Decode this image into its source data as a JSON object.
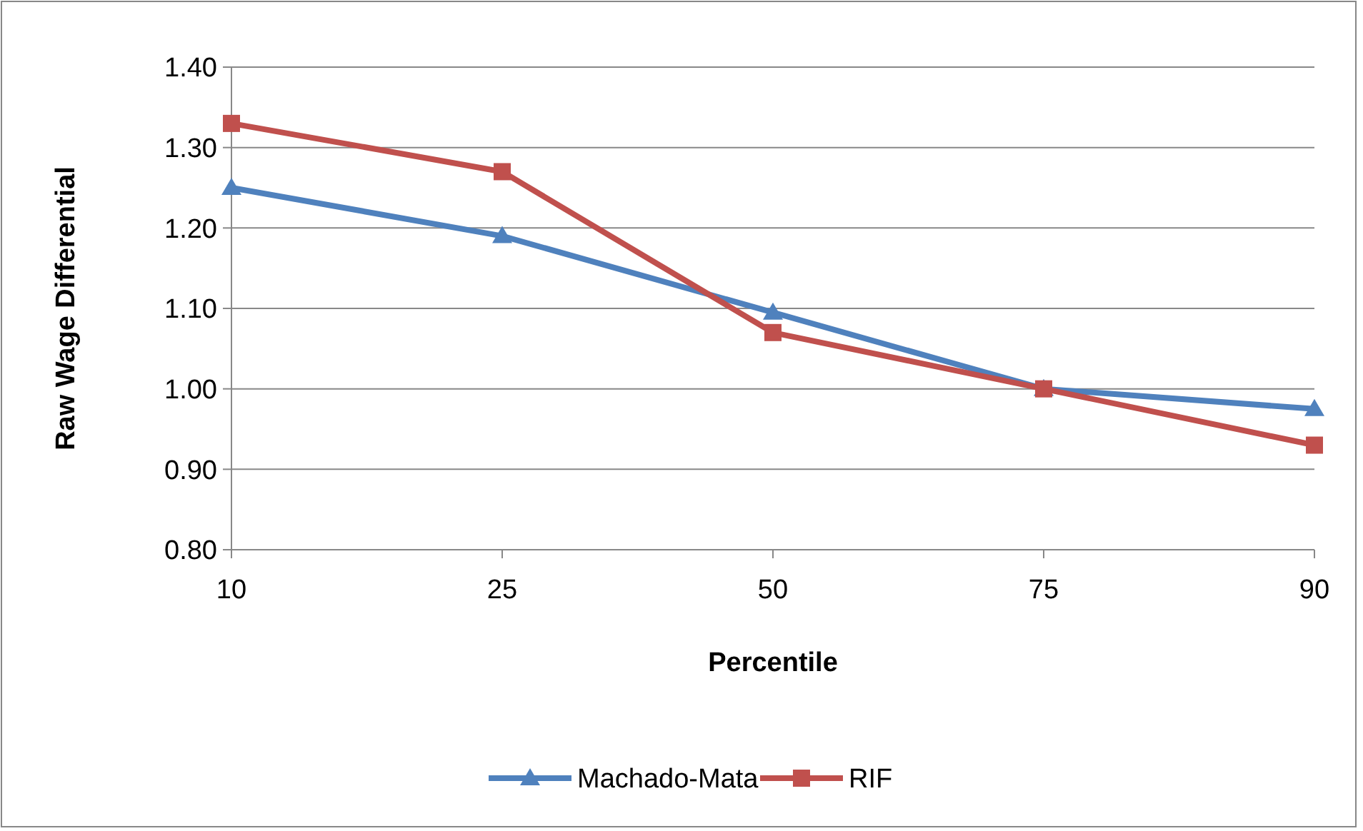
{
  "chart_data": {
    "type": "line",
    "xlabel": "Percentile",
    "ylabel": "Raw Wage Differential",
    "categories": [
      "10",
      "25",
      "50",
      "75",
      "90"
    ],
    "series": [
      {
        "name": "Machado-Mata",
        "color": "#4f81bd",
        "marker": "triangle",
        "values": [
          1.25,
          1.19,
          1.095,
          1.0,
          0.975
        ]
      },
      {
        "name": "RIF",
        "color": "#c0504d",
        "marker": "square",
        "values": [
          1.33,
          1.27,
          1.07,
          1.0,
          0.93
        ]
      }
    ],
    "ylim": [
      0.8,
      1.4
    ],
    "yticks": [
      {
        "value": 0.8,
        "label": "0.80"
      },
      {
        "value": 0.9,
        "label": "0.90"
      },
      {
        "value": 1.0,
        "label": "1.00"
      },
      {
        "value": 1.1,
        "label": "1.10"
      },
      {
        "value": 1.2,
        "label": "1.20"
      },
      {
        "value": 1.3,
        "label": "1.30"
      },
      {
        "value": 1.4,
        "label": "1.40"
      }
    ],
    "grid": "y",
    "legend": "bottom"
  }
}
